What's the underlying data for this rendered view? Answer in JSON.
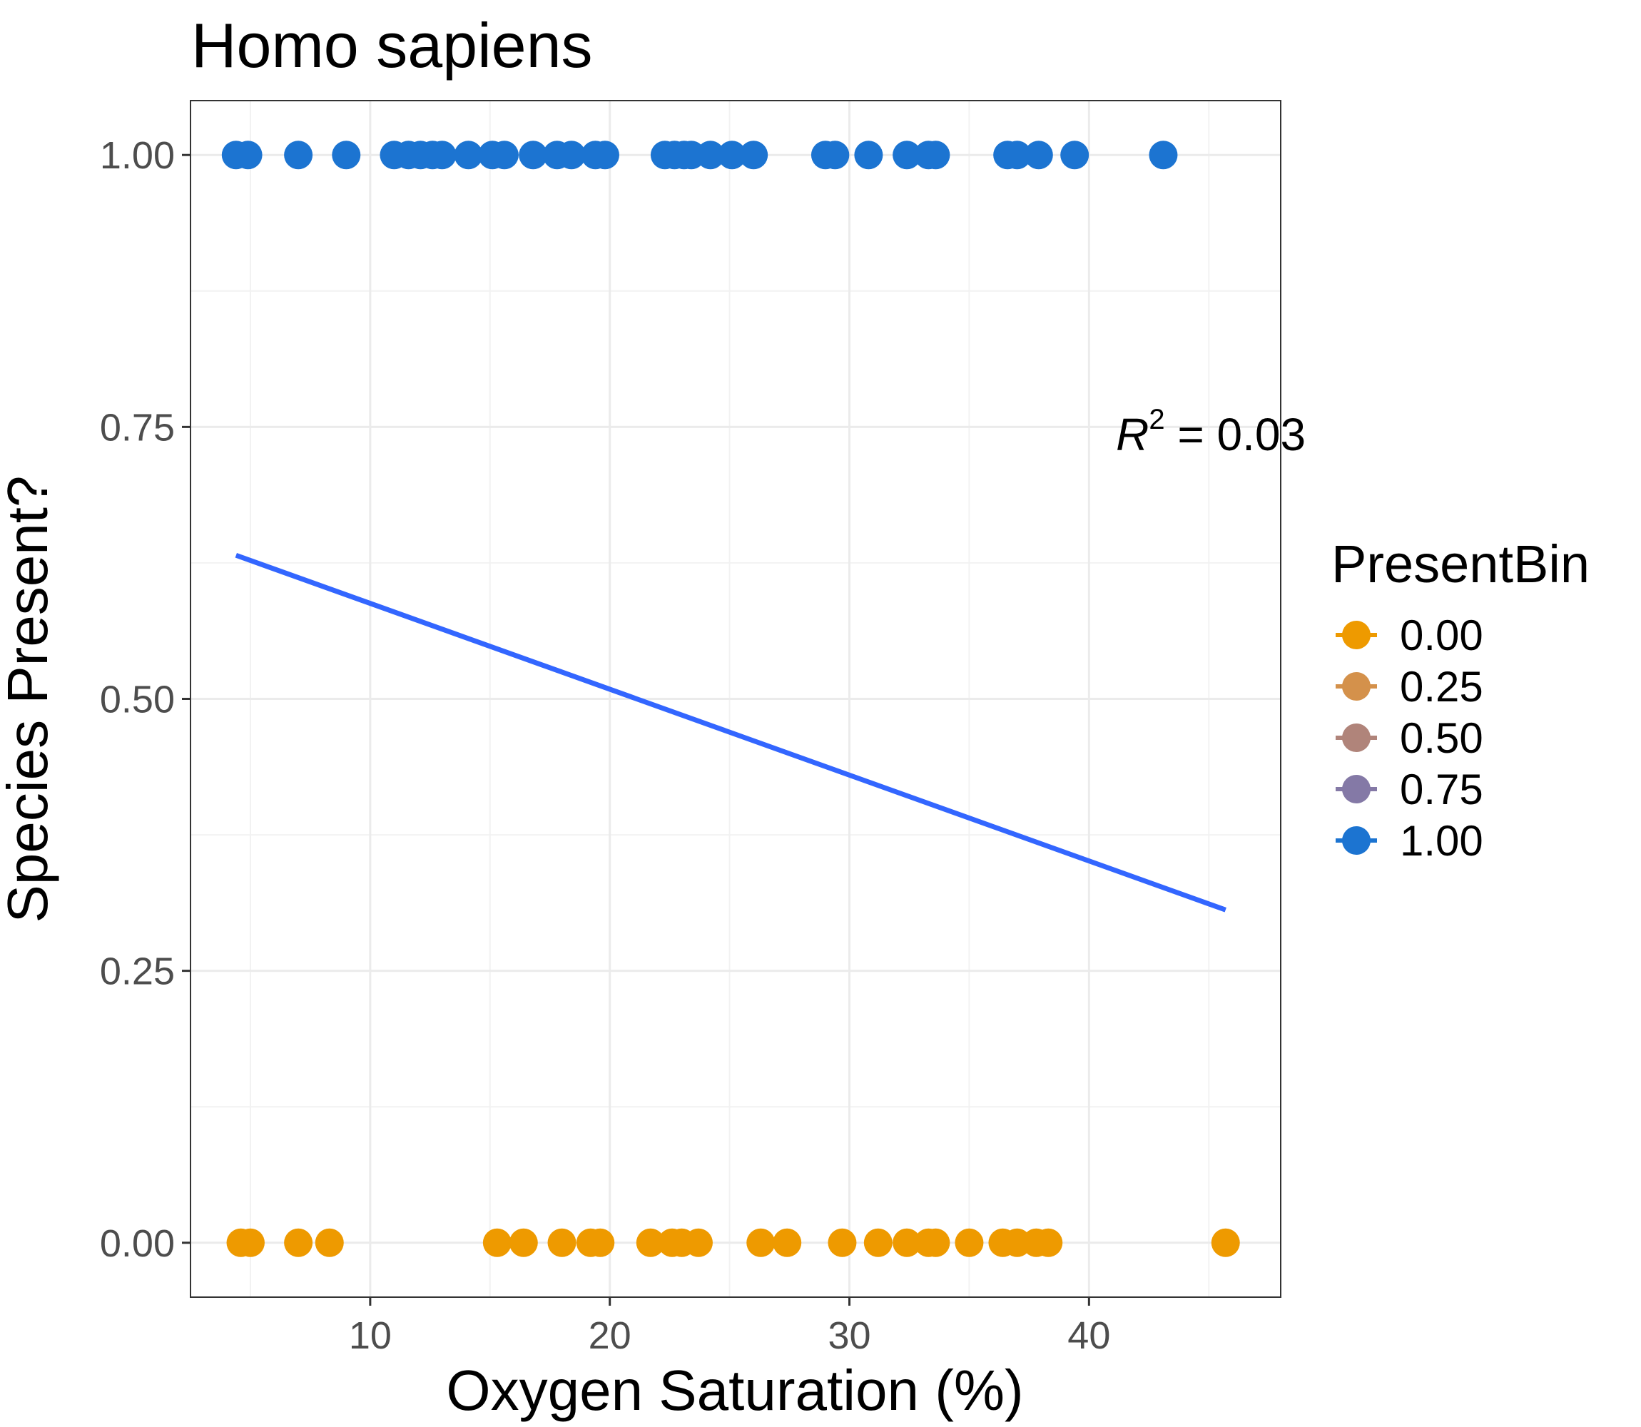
{
  "chart_data": {
    "type": "scatter",
    "title": "Homo sapiens",
    "xlabel": "Oxygen Saturation (%)",
    "ylabel": "Species Present?",
    "xlim": [
      2.5,
      48
    ],
    "ylim": [
      -0.05,
      1.05
    ],
    "x_ticks": [
      10,
      20,
      30,
      40
    ],
    "x_tick_labels": [
      "10",
      "20",
      "30",
      "40"
    ],
    "y_ticks": [
      0,
      0.25,
      0.5,
      0.75,
      1.0
    ],
    "y_tick_labels": [
      "0.00",
      "0.25",
      "0.50",
      "0.75",
      "1.00"
    ],
    "grid": true,
    "legend": {
      "title": "PresentBin",
      "position": "right",
      "entries": [
        {
          "label": "0.00",
          "color": "#EE9A00"
        },
        {
          "label": "0.25",
          "color": "#D4914B"
        },
        {
          "label": "0.50",
          "color": "#B0847A"
        },
        {
          "label": "0.75",
          "color": "#8479A6"
        },
        {
          "label": "1.00",
          "color": "#1C74D1"
        }
      ]
    },
    "series": [
      {
        "name": "1.00",
        "color": "#1C74D1",
        "y": 1,
        "x": [
          4.4,
          4.9,
          7.0,
          9.0,
          11.0,
          11.6,
          12.1,
          12.6,
          13.0,
          14.1,
          15.1,
          15.6,
          16.8,
          17.8,
          18.4,
          19.4,
          19.8,
          22.3,
          22.7,
          23.1,
          23.4,
          24.2,
          25.1,
          26.0,
          29.0,
          29.4,
          30.8,
          32.4,
          33.3,
          33.6,
          36.6,
          37.0,
          37.9,
          39.4,
          43.1
        ]
      },
      {
        "name": "0.00",
        "color": "#EE9A00",
        "y": 0,
        "x": [
          4.6,
          5.0,
          7.0,
          8.3,
          15.3,
          16.4,
          18.0,
          19.2,
          19.6,
          21.7,
          22.6,
          23.0,
          23.7,
          26.3,
          27.4,
          29.7,
          31.2,
          32.4,
          33.3,
          33.6,
          35.0,
          36.4,
          37.0,
          37.8,
          38.3,
          45.7
        ]
      }
    ],
    "fit_line": {
      "color": "#3366FF",
      "x": [
        4.4,
        45.7
      ],
      "y": [
        0.632,
        0.306
      ]
    },
    "annotation": {
      "symbol": "R",
      "superscript": "2",
      "rest": " = 0.03",
      "x": 43.0,
      "y": 0.745
    }
  }
}
